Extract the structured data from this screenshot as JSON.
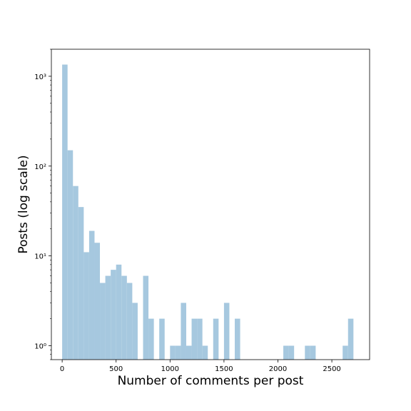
{
  "chart_data": {
    "type": "bar",
    "title": "",
    "xlabel": "Number of comments per post",
    "ylabel": "Posts (log scale)",
    "y_scale": "log",
    "xlim": [
      -100,
      2850
    ],
    "ylim": [
      0.7,
      2000
    ],
    "grid": false,
    "bar_color": "#a6c8df",
    "bin_width": 50,
    "x_ticks": [
      0,
      500,
      1000,
      1500,
      2000,
      2500
    ],
    "y_ticks": [
      {
        "value": 1,
        "label": "10⁰"
      },
      {
        "value": 10,
        "label": "10¹"
      },
      {
        "value": 100,
        "label": "10²"
      },
      {
        "value": 1000,
        "label": "10³"
      }
    ],
    "bins": [
      {
        "x0": 0,
        "count": 1350
      },
      {
        "x0": 50,
        "count": 150
      },
      {
        "x0": 100,
        "count": 60
      },
      {
        "x0": 150,
        "count": 35
      },
      {
        "x0": 200,
        "count": 11
      },
      {
        "x0": 250,
        "count": 19
      },
      {
        "x0": 300,
        "count": 14
      },
      {
        "x0": 350,
        "count": 5
      },
      {
        "x0": 400,
        "count": 6
      },
      {
        "x0": 450,
        "count": 7
      },
      {
        "x0": 500,
        "count": 8
      },
      {
        "x0": 550,
        "count": 6
      },
      {
        "x0": 600,
        "count": 5
      },
      {
        "x0": 650,
        "count": 3
      },
      {
        "x0": 750,
        "count": 6
      },
      {
        "x0": 800,
        "count": 2
      },
      {
        "x0": 900,
        "count": 2
      },
      {
        "x0": 1000,
        "count": 1
      },
      {
        "x0": 1050,
        "count": 1
      },
      {
        "x0": 1100,
        "count": 3
      },
      {
        "x0": 1150,
        "count": 1
      },
      {
        "x0": 1200,
        "count": 2
      },
      {
        "x0": 1250,
        "count": 2
      },
      {
        "x0": 1300,
        "count": 1
      },
      {
        "x0": 1400,
        "count": 2
      },
      {
        "x0": 1500,
        "count": 3
      },
      {
        "x0": 1600,
        "count": 2
      },
      {
        "x0": 2050,
        "count": 1
      },
      {
        "x0": 2100,
        "count": 1
      },
      {
        "x0": 2250,
        "count": 1
      },
      {
        "x0": 2300,
        "count": 1
      },
      {
        "x0": 2600,
        "count": 1
      },
      {
        "x0": 2650,
        "count": 2
      }
    ]
  }
}
